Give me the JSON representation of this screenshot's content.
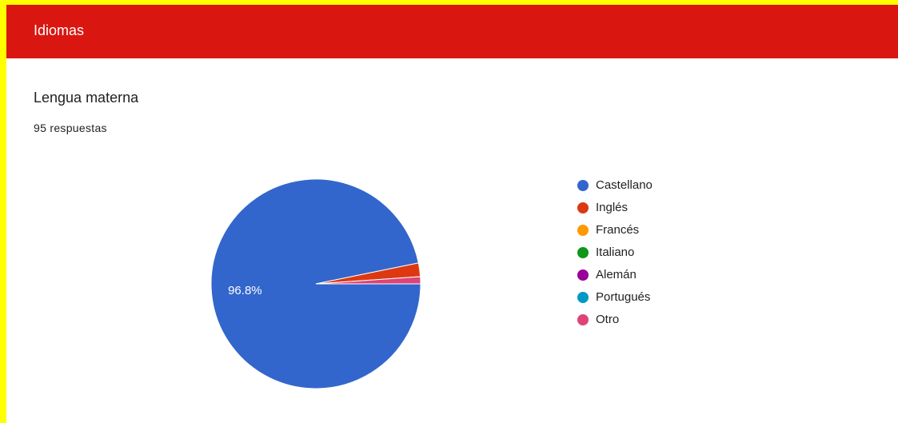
{
  "header": {
    "title": "Idiomas"
  },
  "question": {
    "title": "Lengua materna",
    "responses": "95 respuestas"
  },
  "chart_data": {
    "type": "pie",
    "categories": [
      "Castellano",
      "Inglés",
      "Francés",
      "Italiano",
      "Alemán",
      "Portugués",
      "Otro"
    ],
    "values": [
      96.8,
      2.1,
      0,
      0,
      0,
      0,
      1.1
    ],
    "value_labels": [
      "96.8%",
      null,
      null,
      null,
      null,
      null,
      null
    ],
    "colors": [
      "#3366cc",
      "#dc3912",
      "#ff9900",
      "#109618",
      "#990099",
      "#0099c6",
      "#dd4477"
    ],
    "legend": "right"
  }
}
